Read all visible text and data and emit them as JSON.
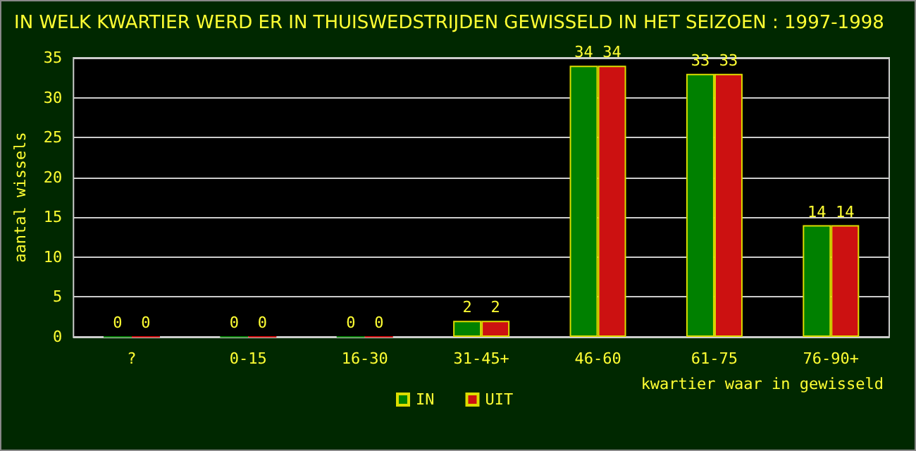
{
  "chart_data": {
    "type": "bar",
    "title": "IN WELK KWARTIER WERD ER IN THUISWEDSTRIJDEN GEWISSELD IN HET SEIZOEN : 1997-1998",
    "xlabel": "kwartier waar in gewisseld",
    "ylabel": "aantal wissels",
    "categories": [
      "?",
      "0-15",
      "16-30",
      "31-45+",
      "46-60",
      "61-75",
      "76-90+"
    ],
    "series": [
      {
        "name": "IN",
        "color": "#008000",
        "values": [
          0,
          0,
          0,
          2,
          34,
          33,
          14
        ]
      },
      {
        "name": "UIT",
        "color": "#cc1111",
        "values": [
          0,
          0,
          0,
          2,
          34,
          33,
          14
        ]
      }
    ],
    "ylim": [
      0,
      35
    ],
    "yticks": [
      0,
      5,
      10,
      15,
      20,
      25,
      30,
      35
    ],
    "grid": "y",
    "legend": "bottom",
    "data_labels": true
  }
}
